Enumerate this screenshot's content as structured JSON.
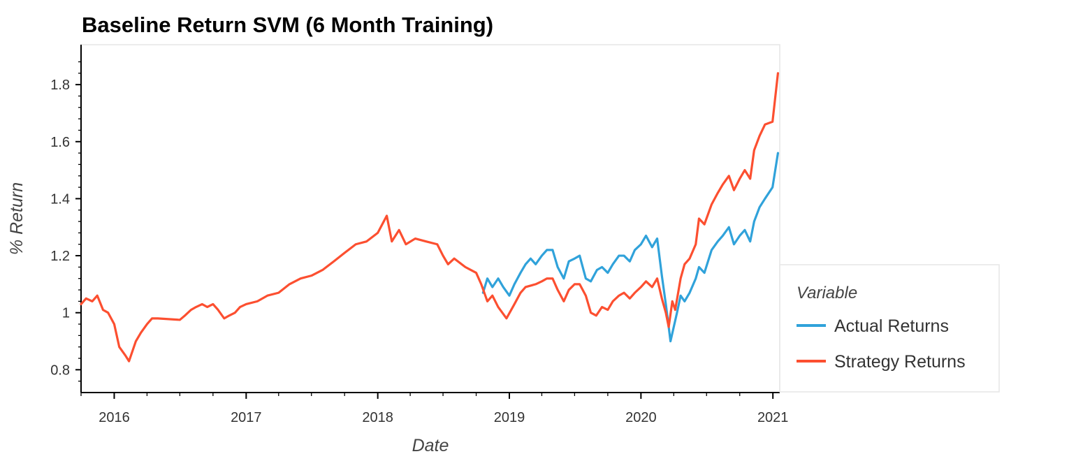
{
  "chart_data": {
    "type": "line",
    "title": "Baseline Return SVM (6 Month Training)",
    "xlabel": "Date",
    "ylabel": "% Return",
    "xlim": [
      "2015-10-01",
      "2021-01-20"
    ],
    "ylim": [
      0.72,
      1.94
    ],
    "x_ticks": [
      "2016",
      "2017",
      "2018",
      "2019",
      "2020",
      "2021"
    ],
    "y_ticks": [
      0.8,
      1,
      1.2,
      1.4,
      1.6,
      1.8
    ],
    "y_tick_labels": [
      "0.8",
      "1",
      "1.2",
      "1.4",
      "1.6",
      "1.8"
    ],
    "grid": false,
    "legend": {
      "title": "Variable",
      "position": "right"
    },
    "series": [
      {
        "name": "Actual Returns",
        "color": "#30a2da",
        "points": [
          [
            "2018-10-20",
            1.07
          ],
          [
            "2018-11-01",
            1.12
          ],
          [
            "2018-11-15",
            1.09
          ],
          [
            "2018-12-01",
            1.12
          ],
          [
            "2018-12-15",
            1.09
          ],
          [
            "2019-01-01",
            1.06
          ],
          [
            "2019-01-15",
            1.1
          ],
          [
            "2019-02-01",
            1.14
          ],
          [
            "2019-02-15",
            1.17
          ],
          [
            "2019-03-01",
            1.19
          ],
          [
            "2019-03-15",
            1.17
          ],
          [
            "2019-04-01",
            1.2
          ],
          [
            "2019-04-15",
            1.22
          ],
          [
            "2019-05-01",
            1.22
          ],
          [
            "2019-05-15",
            1.16
          ],
          [
            "2019-06-01",
            1.12
          ],
          [
            "2019-06-15",
            1.18
          ],
          [
            "2019-07-01",
            1.19
          ],
          [
            "2019-07-15",
            1.2
          ],
          [
            "2019-08-01",
            1.12
          ],
          [
            "2019-08-15",
            1.11
          ],
          [
            "2019-09-01",
            1.15
          ],
          [
            "2019-09-15",
            1.16
          ],
          [
            "2019-10-01",
            1.14
          ],
          [
            "2019-10-15",
            1.17
          ],
          [
            "2019-11-01",
            1.2
          ],
          [
            "2019-11-15",
            1.2
          ],
          [
            "2019-12-01",
            1.18
          ],
          [
            "2019-12-15",
            1.22
          ],
          [
            "2020-01-01",
            1.24
          ],
          [
            "2020-01-15",
            1.27
          ],
          [
            "2020-02-01",
            1.23
          ],
          [
            "2020-02-15",
            1.26
          ],
          [
            "2020-02-28",
            1.13
          ],
          [
            "2020-03-10",
            1.03
          ],
          [
            "2020-03-23",
            0.9
          ],
          [
            "2020-04-10",
            1.0
          ],
          [
            "2020-04-20",
            1.06
          ],
          [
            "2020-05-01",
            1.04
          ],
          [
            "2020-05-15",
            1.07
          ],
          [
            "2020-06-01",
            1.12
          ],
          [
            "2020-06-10",
            1.16
          ],
          [
            "2020-06-25",
            1.14
          ],
          [
            "2020-07-15",
            1.22
          ],
          [
            "2020-08-01",
            1.25
          ],
          [
            "2020-08-15",
            1.27
          ],
          [
            "2020-09-01",
            1.3
          ],
          [
            "2020-09-15",
            1.24
          ],
          [
            "2020-10-01",
            1.27
          ],
          [
            "2020-10-15",
            1.29
          ],
          [
            "2020-10-30",
            1.25
          ],
          [
            "2020-11-10",
            1.32
          ],
          [
            "2020-11-25",
            1.37
          ],
          [
            "2020-12-10",
            1.4
          ],
          [
            "2020-12-31",
            1.44
          ],
          [
            "2021-01-15",
            1.56
          ]
        ]
      },
      {
        "name": "Strategy Returns",
        "color": "#fc4f30",
        "points": [
          [
            "2015-10-01",
            1.03
          ],
          [
            "2015-10-15",
            1.05
          ],
          [
            "2015-11-01",
            1.04
          ],
          [
            "2015-11-15",
            1.06
          ],
          [
            "2015-12-01",
            1.01
          ],
          [
            "2015-12-15",
            1.0
          ],
          [
            "2016-01-01",
            0.96
          ],
          [
            "2016-01-15",
            0.88
          ],
          [
            "2016-02-01",
            0.85
          ],
          [
            "2016-02-11",
            0.83
          ],
          [
            "2016-03-01",
            0.9
          ],
          [
            "2016-03-15",
            0.93
          ],
          [
            "2016-04-01",
            0.96
          ],
          [
            "2016-04-15",
            0.98
          ],
          [
            "2016-05-01",
            0.98
          ],
          [
            "2016-07-01",
            0.975
          ],
          [
            "2016-07-15",
            0.99
          ],
          [
            "2016-08-01",
            1.01
          ],
          [
            "2016-08-15",
            1.02
          ],
          [
            "2016-09-01",
            1.03
          ],
          [
            "2016-09-15",
            1.02
          ],
          [
            "2016-10-01",
            1.03
          ],
          [
            "2016-10-15",
            1.01
          ],
          [
            "2016-11-01",
            0.98
          ],
          [
            "2016-11-15",
            0.99
          ],
          [
            "2016-12-01",
            1.0
          ],
          [
            "2016-12-15",
            1.02
          ],
          [
            "2017-01-01",
            1.03
          ],
          [
            "2017-02-01",
            1.04
          ],
          [
            "2017-03-01",
            1.06
          ],
          [
            "2017-04-01",
            1.07
          ],
          [
            "2017-05-01",
            1.1
          ],
          [
            "2017-06-01",
            1.12
          ],
          [
            "2017-07-01",
            1.13
          ],
          [
            "2017-08-01",
            1.15
          ],
          [
            "2017-09-01",
            1.18
          ],
          [
            "2017-10-01",
            1.21
          ],
          [
            "2017-11-01",
            1.24
          ],
          [
            "2017-12-01",
            1.25
          ],
          [
            "2018-01-01",
            1.28
          ],
          [
            "2018-01-26",
            1.34
          ],
          [
            "2018-02-09",
            1.25
          ],
          [
            "2018-03-01",
            1.29
          ],
          [
            "2018-03-20",
            1.24
          ],
          [
            "2018-04-15",
            1.26
          ],
          [
            "2018-05-15",
            1.25
          ],
          [
            "2018-06-15",
            1.24
          ],
          [
            "2018-07-01",
            1.2
          ],
          [
            "2018-07-15",
            1.17
          ],
          [
            "2018-08-01",
            1.19
          ],
          [
            "2018-09-01",
            1.16
          ],
          [
            "2018-10-01",
            1.14
          ],
          [
            "2018-10-15",
            1.1
          ],
          [
            "2018-11-01",
            1.04
          ],
          [
            "2018-11-15",
            1.06
          ],
          [
            "2018-12-01",
            1.02
          ],
          [
            "2018-12-24",
            0.98
          ],
          [
            "2019-01-15",
            1.03
          ],
          [
            "2019-02-01",
            1.07
          ],
          [
            "2019-02-15",
            1.09
          ],
          [
            "2019-03-15",
            1.1
          ],
          [
            "2019-04-01",
            1.11
          ],
          [
            "2019-04-15",
            1.12
          ],
          [
            "2019-05-01",
            1.12
          ],
          [
            "2019-05-15",
            1.08
          ],
          [
            "2019-06-01",
            1.04
          ],
          [
            "2019-06-15",
            1.08
          ],
          [
            "2019-07-01",
            1.1
          ],
          [
            "2019-07-15",
            1.1
          ],
          [
            "2019-08-01",
            1.06
          ],
          [
            "2019-08-15",
            1.0
          ],
          [
            "2019-08-30",
            0.99
          ],
          [
            "2019-09-15",
            1.02
          ],
          [
            "2019-10-01",
            1.01
          ],
          [
            "2019-10-15",
            1.04
          ],
          [
            "2019-11-01",
            1.06
          ],
          [
            "2019-11-15",
            1.07
          ],
          [
            "2019-12-01",
            1.05
          ],
          [
            "2019-12-15",
            1.07
          ],
          [
            "2020-01-01",
            1.09
          ],
          [
            "2020-01-15",
            1.11
          ],
          [
            "2020-02-01",
            1.09
          ],
          [
            "2020-02-15",
            1.12
          ],
          [
            "2020-02-28",
            1.05
          ],
          [
            "2020-03-10",
            1.0
          ],
          [
            "2020-03-18",
            0.95
          ],
          [
            "2020-03-28",
            1.04
          ],
          [
            "2020-04-05",
            1.01
          ],
          [
            "2020-04-20",
            1.12
          ],
          [
            "2020-05-01",
            1.17
          ],
          [
            "2020-05-15",
            1.19
          ],
          [
            "2020-06-01",
            1.24
          ],
          [
            "2020-06-10",
            1.33
          ],
          [
            "2020-06-25",
            1.31
          ],
          [
            "2020-07-15",
            1.38
          ],
          [
            "2020-08-01",
            1.42
          ],
          [
            "2020-08-15",
            1.45
          ],
          [
            "2020-09-01",
            1.48
          ],
          [
            "2020-09-15",
            1.43
          ],
          [
            "2020-10-01",
            1.47
          ],
          [
            "2020-10-15",
            1.5
          ],
          [
            "2020-10-30",
            1.47
          ],
          [
            "2020-11-10",
            1.57
          ],
          [
            "2020-11-25",
            1.62
          ],
          [
            "2020-12-10",
            1.66
          ],
          [
            "2020-12-31",
            1.67
          ],
          [
            "2021-01-15",
            1.84
          ]
        ]
      }
    ]
  }
}
